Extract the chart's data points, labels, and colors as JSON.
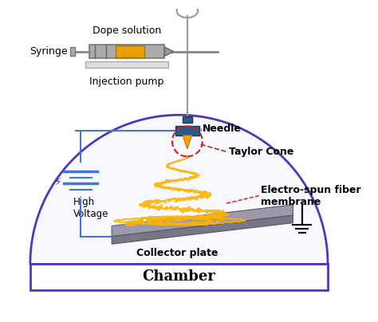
{
  "bg_color": "#ffffff",
  "chamber_color": "#5533bb",
  "chamber_fill": "#f8f8ff",
  "text_chamber": "Chamber",
  "text_needle": "Needle",
  "text_taylor": "Taylor Cone",
  "text_fiber": "Electro-spun fiber\nmembrane",
  "text_collector": "Collector plate",
  "text_voltage": "High\nVoltage",
  "text_dope": "Dope solution",
  "text_syringe": "Syringe",
  "text_pump": "Injection pump",
  "fiber_color": "#FFB300",
  "needle_blue": "#2a5a8a",
  "needle_dark": "#1a3a55",
  "plate_top_color": "#9a9aaa",
  "plate_front_color": "#777788",
  "wire_color": "#4477cc",
  "taylor_circle_color": "#cc2222",
  "syringe_body_color": "#888888",
  "syringe_plunger_color": "#e8a000",
  "lightning_color": "#334499"
}
